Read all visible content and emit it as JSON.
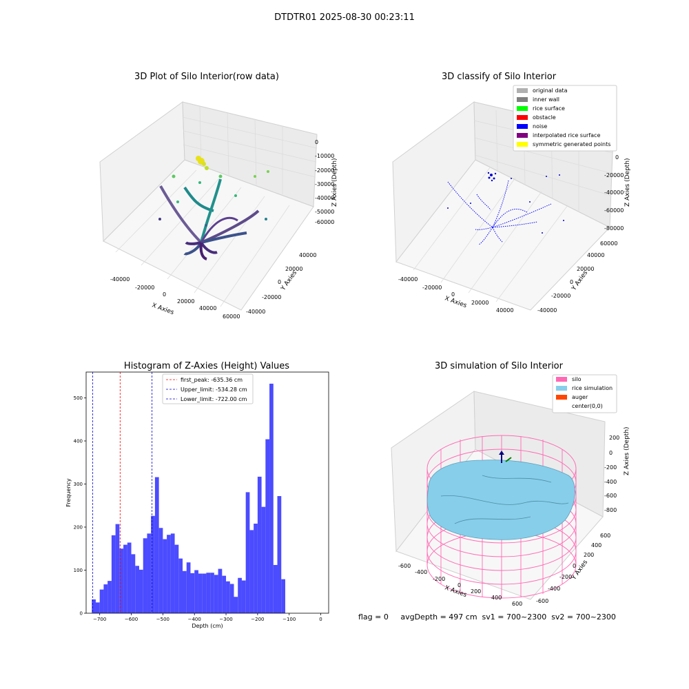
{
  "figure": {
    "suptitle": "DTDTR01 2025-08-30 00:23:11",
    "status_text": "flag = 0     avgDepth = 497 cm  sv1 = 700~2300  sv2 = 700~2300"
  },
  "chart_data": [
    {
      "type": "scatter",
      "title": "3D Plot of Silo Interior(row data)",
      "xlabel": "X Axies",
      "ylabel": "Y Axies",
      "zlabel": "Z Axies (Depth)",
      "x_ticks": [
        "-40000",
        "-20000",
        "0",
        "20000",
        "40000",
        "60000"
      ],
      "y_ticks": [
        "-40000",
        "-20000",
        "0",
        "20000",
        "40000"
      ],
      "z_ticks": [
        "0",
        "-10000",
        "-20000",
        "-30000",
        "-40000",
        "-50000",
        "-60000"
      ],
      "colormap": "viridis"
    },
    {
      "type": "scatter",
      "title": "3D classify of Silo Interior",
      "xlabel": "X Axies",
      "ylabel": "Y Axies",
      "zlabel": "Z Axies (Depth)",
      "x_ticks": [
        "-40000",
        "-20000",
        "0",
        "20000",
        "40000"
      ],
      "y_ticks": [
        "-40000",
        "-20000",
        "0",
        "20000",
        "40000",
        "60000"
      ],
      "z_ticks": [
        "0",
        "-20000",
        "-40000",
        "-60000",
        "-80000"
      ],
      "legend": [
        {
          "label": "original data",
          "color": "#b0b0b0"
        },
        {
          "label": "inner wall",
          "color": "#808080"
        },
        {
          "label": "rice surface",
          "color": "#00ff00"
        },
        {
          "label": "obstacle",
          "color": "#ff0000"
        },
        {
          "label": "noise",
          "color": "#0000ff"
        },
        {
          "label": "interpolated rice surface",
          "color": "#800080"
        },
        {
          "label": "symmetric generated points",
          "color": "#ffff00"
        }
      ],
      "legend_loc": "upper right"
    },
    {
      "type": "bar",
      "title": "Histogram of Z-Axies (Height) Values",
      "xlabel": "Depth (cm)",
      "ylabel": "Frequency",
      "bin_width": 12.5,
      "bin_start": -725,
      "values": [
        32,
        25,
        55,
        67,
        75,
        181,
        207,
        150,
        159,
        164,
        137,
        110,
        101,
        174,
        185,
        226,
        316,
        198,
        172,
        182,
        185,
        159,
        127,
        98,
        118,
        93,
        100,
        92,
        92,
        94,
        94,
        89,
        103,
        87,
        74,
        68,
        38,
        82,
        76,
        281,
        193,
        208,
        317,
        247,
        404,
        533,
        112,
        272,
        79
      ],
      "xlim": [
        -743,
        25
      ],
      "ylim": [
        0,
        560
      ],
      "x_ticks": [
        -700,
        -600,
        -500,
        -400,
        -300,
        -200,
        -100,
        0
      ],
      "y_ticks": [
        0,
        100,
        200,
        300,
        400,
        500
      ],
      "vlines": [
        {
          "label": "first_peak: -635.36 cm",
          "x": -635.36,
          "color": "#ff0000"
        },
        {
          "label": "Upper_limit: -534.28 cm",
          "x": -534.28,
          "color": "#0000cc"
        },
        {
          "label": "Lower_limit: -722.00 cm",
          "x": -722.0,
          "color": "#0000cc"
        }
      ],
      "bar_color": "#4b4bff",
      "legend_loc": "upper center"
    },
    {
      "type": "surface",
      "title": "3D simulation of Silo Interior",
      "xlabel": "X Axies",
      "ylabel": "Y Axies",
      "zlabel": "Z Axies (Depth)",
      "x_ticks": [
        "-600",
        "-400",
        "-200",
        "0",
        "200",
        "400",
        "600"
      ],
      "y_ticks": [
        "-600",
        "-400",
        "-200",
        "0",
        "200",
        "400",
        "600"
      ],
      "z_ticks": [
        "200",
        "0",
        "-200",
        "-400",
        "-600",
        "-800"
      ],
      "legend": [
        {
          "label": "silo",
          "color": "#ff69b4"
        },
        {
          "label": "rice simulation",
          "color": "#87ceeb"
        },
        {
          "label": "auger",
          "color": "#ff4500"
        },
        {
          "label": "center(0,0)",
          "color": "#ffffff"
        }
      ],
      "legend_loc": "upper right"
    }
  ]
}
